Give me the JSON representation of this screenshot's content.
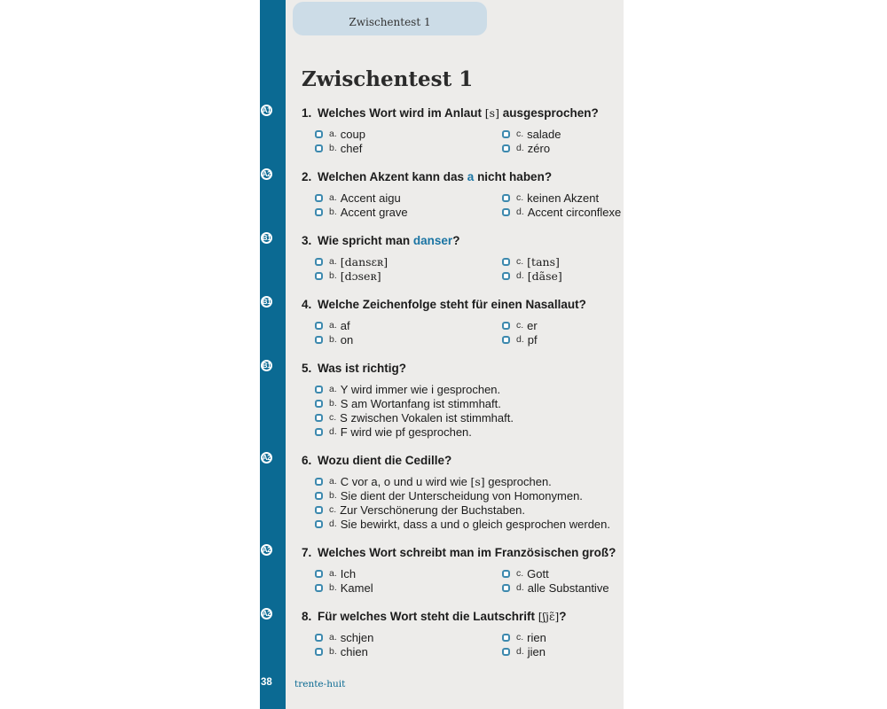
{
  "page": {
    "tab_label": "Zwischentest 1",
    "title": "Zwischentest 1",
    "page_number": "38",
    "footer_text": "trente-huit"
  },
  "colors": {
    "bar": "#0b6a93",
    "tab_bg": "#ccdce7",
    "content_bg": "#edecea",
    "accent": "#1a74a3",
    "checkbox": "#3d89ae"
  },
  "questions": [
    {
      "level": "A1",
      "number": "1.",
      "columns": 2,
      "title": [
        {
          "s": "t",
          "x": "Welches Wort wird im Anlaut "
        },
        {
          "s": "p",
          "x": "[s]"
        },
        {
          "s": "t",
          "x": " ausgesprochen?"
        }
      ],
      "options": [
        {
          "letter": "a.",
          "text": [
            {
              "s": "t",
              "x": "coup"
            }
          ]
        },
        {
          "letter": "b.",
          "text": [
            {
              "s": "t",
              "x": "chef"
            }
          ]
        },
        {
          "letter": "c.",
          "text": [
            {
              "s": "t",
              "x": "salade"
            }
          ]
        },
        {
          "letter": "d.",
          "text": [
            {
              "s": "t",
              "x": "zéro"
            }
          ]
        }
      ]
    },
    {
      "level": "A2",
      "number": "2.",
      "columns": 2,
      "title": [
        {
          "s": "t",
          "x": "Welchen Akzent kann das "
        },
        {
          "s": "a",
          "x": "a"
        },
        {
          "s": "t",
          "x": " nicht haben?"
        }
      ],
      "options": [
        {
          "letter": "a.",
          "text": [
            {
              "s": "t",
              "x": "Accent aigu"
            }
          ]
        },
        {
          "letter": "b.",
          "text": [
            {
              "s": "t",
              "x": "Accent grave"
            }
          ]
        },
        {
          "letter": "c.",
          "text": [
            {
              "s": "t",
              "x": "keinen Akzent"
            }
          ]
        },
        {
          "letter": "d.",
          "text": [
            {
              "s": "t",
              "x": "Accent circonflexe"
            }
          ]
        }
      ]
    },
    {
      "level": "B1",
      "number": "3.",
      "columns": 2,
      "title": [
        {
          "s": "t",
          "x": "Wie spricht man "
        },
        {
          "s": "a",
          "x": "danser"
        },
        {
          "s": "t",
          "x": "?"
        }
      ],
      "options": [
        {
          "letter": "a.",
          "text": [
            {
              "s": "p",
              "x": "[dansɛʀ]"
            }
          ]
        },
        {
          "letter": "b.",
          "text": [
            {
              "s": "p",
              "x": "[dɔseʀ]"
            }
          ]
        },
        {
          "letter": "c.",
          "text": [
            {
              "s": "p",
              "x": "[tans]"
            }
          ]
        },
        {
          "letter": "d.",
          "text": [
            {
              "s": "p",
              "x": "[dãse]"
            }
          ]
        }
      ]
    },
    {
      "level": "B1",
      "number": "4.",
      "columns": 2,
      "title": [
        {
          "s": "t",
          "x": "Welche Zeichenfolge steht für einen Nasallaut?"
        }
      ],
      "options": [
        {
          "letter": "a.",
          "text": [
            {
              "s": "t",
              "x": "af"
            }
          ]
        },
        {
          "letter": "b.",
          "text": [
            {
              "s": "t",
              "x": "on"
            }
          ]
        },
        {
          "letter": "c.",
          "text": [
            {
              "s": "t",
              "x": "er"
            }
          ]
        },
        {
          "letter": "d.",
          "text": [
            {
              "s": "t",
              "x": "pf"
            }
          ]
        }
      ]
    },
    {
      "level": "B1",
      "number": "5.",
      "columns": 1,
      "title": [
        {
          "s": "t",
          "x": "Was ist richtig?"
        }
      ],
      "options": [
        {
          "letter": "a.",
          "text": [
            {
              "s": "t",
              "x": "Y wird immer wie i gesprochen."
            }
          ]
        },
        {
          "letter": "b.",
          "text": [
            {
              "s": "t",
              "x": "S am Wortanfang ist stimmhaft."
            }
          ]
        },
        {
          "letter": "c.",
          "text": [
            {
              "s": "t",
              "x": "S zwischen Vokalen ist stimmhaft."
            }
          ]
        },
        {
          "letter": "d.",
          "text": [
            {
              "s": "t",
              "x": "F wird wie pf gesprochen."
            }
          ]
        }
      ]
    },
    {
      "level": "A2",
      "number": "6.",
      "columns": 1,
      "title": [
        {
          "s": "t",
          "x": "Wozu dient die Cedille?"
        }
      ],
      "options": [
        {
          "letter": "a.",
          "text": [
            {
              "s": "t",
              "x": "C vor a, o und u wird wie "
            },
            {
              "s": "p",
              "x": "[s]"
            },
            {
              "s": "t",
              "x": " gesprochen."
            }
          ]
        },
        {
          "letter": "b.",
          "text": [
            {
              "s": "t",
              "x": "Sie dient der Unterscheidung von Homonymen."
            }
          ]
        },
        {
          "letter": "c.",
          "text": [
            {
              "s": "t",
              "x": "Zur Verschönerung der Buchstaben."
            }
          ]
        },
        {
          "letter": "d.",
          "text": [
            {
              "s": "t",
              "x": "Sie bewirkt, dass a und o gleich gesprochen werden."
            }
          ]
        }
      ]
    },
    {
      "level": "A2",
      "number": "7.",
      "columns": 2,
      "title": [
        {
          "s": "t",
          "x": "Welches Wort schreibt man im Französischen groß?"
        }
      ],
      "options": [
        {
          "letter": "a.",
          "text": [
            {
              "s": "t",
              "x": "Ich"
            }
          ]
        },
        {
          "letter": "b.",
          "text": [
            {
              "s": "t",
              "x": "Kamel"
            }
          ]
        },
        {
          "letter": "c.",
          "text": [
            {
              "s": "t",
              "x": "Gott"
            }
          ]
        },
        {
          "letter": "d.",
          "text": [
            {
              "s": "t",
              "x": "alle Substantive"
            }
          ]
        }
      ]
    },
    {
      "level": "A2",
      "number": "8.",
      "columns": 2,
      "title": [
        {
          "s": "t",
          "x": "Für welches Wort steht die Lautschrift "
        },
        {
          "s": "p",
          "x": "[ʃjɛ̃]"
        },
        {
          "s": "t",
          "x": "?"
        }
      ],
      "options": [
        {
          "letter": "a.",
          "text": [
            {
              "s": "t",
              "x": "schjen"
            }
          ]
        },
        {
          "letter": "b.",
          "text": [
            {
              "s": "t",
              "x": "chien"
            }
          ]
        },
        {
          "letter": "c.",
          "text": [
            {
              "s": "t",
              "x": "rien"
            }
          ]
        },
        {
          "letter": "d.",
          "text": [
            {
              "s": "t",
              "x": "jien"
            }
          ]
        }
      ]
    }
  ]
}
